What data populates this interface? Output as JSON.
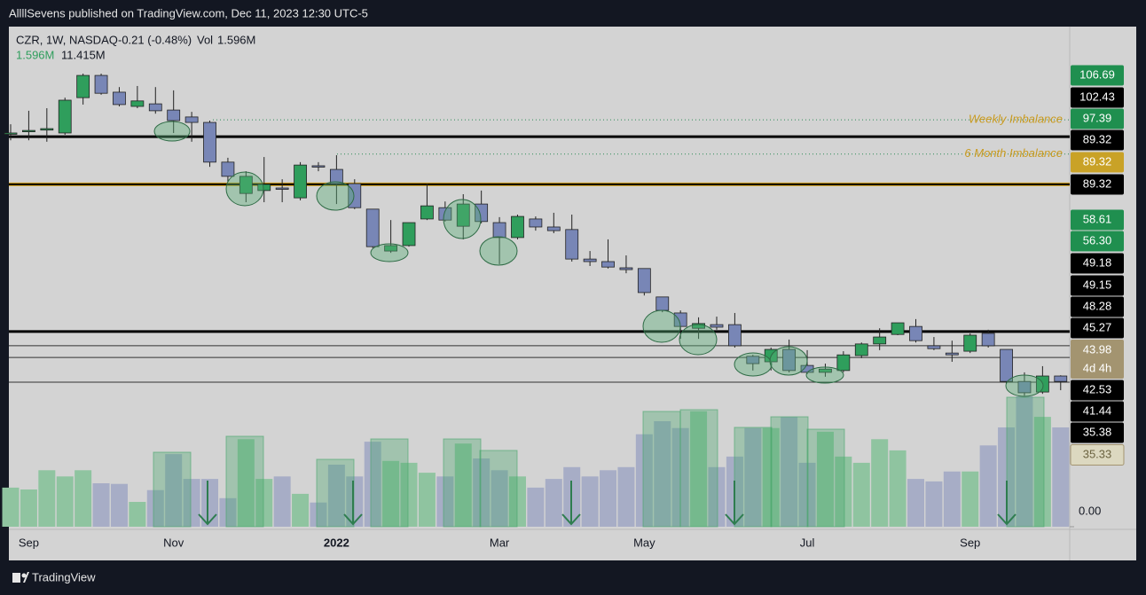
{
  "header": {
    "title": "AllllSevens published on TradingView.com, Dec 11, 2023 12:30 UTC-5"
  },
  "legend": {
    "symbol": "CZR, 1W, NASDAQ",
    "change": "-0.21 (-0.48%)",
    "vol_label": "Vol",
    "vol_value": "1.596M",
    "vol_line": [
      "1.596M",
      "11.415M"
    ]
  },
  "footer": {
    "brand": "TradingView"
  },
  "chart_data": {
    "type": "candlestick",
    "up_color": "#2f9e5c",
    "down_color": "#7886b6",
    "categories": [
      null,
      "Sep",
      null,
      null,
      null,
      null,
      null,
      null,
      null,
      "Nov",
      null,
      null,
      null,
      null,
      null,
      null,
      null,
      null,
      "2022",
      null,
      null,
      null,
      null,
      null,
      null,
      null,
      null,
      "Mar",
      null,
      null,
      null,
      null,
      null,
      null,
      null,
      "May",
      null,
      null,
      null,
      null,
      null,
      null,
      null,
      null,
      "Jul",
      null,
      null,
      null,
      null,
      null,
      null,
      null,
      null,
      "Sep",
      null,
      null,
      null,
      null,
      null
    ],
    "ylim": [
      -5,
      133
    ],
    "candles": {
      "open": [
        103.8,
        104.3,
        104.6,
        103.8,
        113.5,
        119.6,
        115.0,
        111.1,
        111.8,
        110.1,
        108.2,
        106.7,
        95.8,
        87.2,
        88.0,
        88.7,
        86.0,
        94.8,
        93.8,
        89.9,
        82.9,
        71.4,
        72.9,
        80.2,
        83.3,
        78.2,
        84.3,
        79.2,
        75.1,
        80.2,
        78.0,
        77.3,
        69.2,
        68.5,
        66.8,
        66.6,
        58.8,
        54.4,
        50.2,
        51.2,
        51.2,
        42.5,
        41.0,
        44.4,
        40.0,
        38.1,
        38.6,
        42.7,
        45.9,
        48.5,
        50.7,
        45.4,
        43.4,
        43.9,
        48.8,
        44.4,
        35.6,
        32.7,
        37.1
      ],
      "high": [
        106.2,
        109.9,
        110.6,
        113.5,
        120.1,
        120.1,
        116.4,
        116.7,
        116.4,
        115.5,
        109.6,
        107.2,
        97.0,
        93.3,
        97.2,
        91.1,
        95.8,
        95.8,
        97.7,
        91.1,
        82.9,
        79.9,
        79.2,
        89.9,
        85.0,
        87.0,
        88.0,
        80.7,
        81.4,
        80.9,
        81.9,
        81.4,
        71.4,
        74.6,
        70.2,
        66.6,
        58.8,
        55.1,
        53.2,
        53.4,
        54.4,
        42.9,
        44.9,
        47.1,
        44.2,
        40.5,
        43.9,
        46.3,
        50.2,
        51.7,
        52.7,
        47.8,
        46.8,
        48.8,
        49.8,
        44.4,
        38.1,
        39.8,
        37.3
      ],
      "low": [
        101.8,
        101.8,
        101.4,
        103.3,
        111.6,
        114.3,
        111.1,
        110.6,
        109.1,
        103.8,
        101.4,
        94.5,
        90.4,
        84.8,
        84.8,
        84.8,
        85.3,
        93.3,
        84.3,
        82.9,
        72.2,
        70.9,
        72.6,
        79.9,
        79.5,
        74.6,
        79.0,
        67.8,
        74.6,
        77.0,
        76.3,
        68.5,
        67.3,
        66.6,
        65.3,
        59.2,
        54.6,
        47.3,
        47.3,
        49.8,
        44.9,
        38.6,
        38.6,
        38.1,
        37.6,
        36.9,
        38.1,
        42.0,
        44.2,
        48.3,
        46.3,
        44.2,
        41.0,
        43.4,
        44.9,
        34.9,
        31.7,
        32.2,
        33.2
      ],
      "close": [
        103.8,
        104.5,
        105.0,
        112.8,
        119.6,
        114.7,
        111.6,
        112.6,
        109.9,
        107.2,
        106.7,
        95.8,
        91.9,
        91.9,
        89.7,
        88.6,
        95.0,
        94.7,
        89.9,
        83.3,
        72.6,
        72.9,
        79.2,
        83.8,
        79.9,
        84.3,
        79.5,
        75.1,
        80.9,
        78.0,
        77.0,
        69.2,
        68.5,
        67.0,
        66.3,
        60.0,
        55.1,
        50.7,
        51.5,
        50.5,
        45.4,
        40.5,
        44.4,
        38.6,
        38.1,
        39.0,
        42.9,
        45.9,
        47.8,
        51.7,
        46.8,
        44.6,
        42.9,
        48.3,
        45.4,
        35.6,
        32.5,
        37.1,
        35.6
      ]
    },
    "volume": {
      "values": [
        0.63,
        0.6,
        0.91,
        0.81,
        0.91,
        0.7,
        0.69,
        0.4,
        0.59,
        1.17,
        0.77,
        0.77,
        0.46,
        1.41,
        0.77,
        0.81,
        0.53,
        0.39,
        1.0,
        0.81,
        1.37,
        1.06,
        1.03,
        0.87,
        0.81,
        1.34,
        1.1,
        0.91,
        0.81,
        0.63,
        0.77,
        0.96,
        0.81,
        0.91,
        0.96,
        1.49,
        1.7,
        1.59,
        1.86,
        0.96,
        1.13,
        1.59,
        1.59,
        1.77,
        1.03,
        1.53,
        1.13,
        1.03,
        1.41,
        1.23,
        0.77,
        0.73,
        0.89,
        0.89,
        1.31,
        1.6,
        2.1,
        1.77,
        1.6
      ],
      "up_color": "#8fc4a0",
      "down_color": "#a7adc6",
      "ylim": [
        0,
        2.2
      ],
      "yticks": [
        {
          "value": 0,
          "label": "0.00"
        }
      ]
    },
    "levels": [
      {
        "value": 107.4,
        "color": "#2e8b57",
        "width": 1,
        "style": "dotted",
        "label": "Weekly Imbalance"
      },
      {
        "value": 102.8,
        "color": "#000000",
        "width": 3
      },
      {
        "value": 98.0,
        "color": "#2e8b57",
        "width": 1,
        "style": "dotted",
        "label": "6 Month Imbalance"
      },
      {
        "value": 89.7,
        "color": "#000000",
        "width": 2,
        "outline": "#d4a017"
      },
      {
        "value": 49.3,
        "color": "#000000",
        "width": 3
      },
      {
        "value": 45.4,
        "color": "#333333",
        "width": 1
      },
      {
        "value": 42.2,
        "color": "#333333",
        "width": 1
      },
      {
        "value": 35.4,
        "color": "#333333",
        "width": 1
      }
    ],
    "level_label_color": "#c99a1e",
    "price_labels": [
      {
        "value": 106.69,
        "color": "#1f8f4f"
      },
      {
        "value": 102.43,
        "color": "#000000"
      },
      {
        "value": 97.39,
        "color": "#1f8f4f"
      },
      {
        "value": 89.32,
        "color": "#000000"
      },
      {
        "value": 89.32,
        "color": "#c9a227"
      },
      {
        "value": 89.32,
        "color": "#000000"
      },
      {
        "value": 58.61,
        "color": "#1f8f4f"
      },
      {
        "value": 56.3,
        "label": "56.30",
        "color": "#1f8f4f"
      },
      {
        "value": 49.18,
        "color": "#000000"
      },
      {
        "value": 49.15,
        "color": "#000000"
      },
      {
        "value": 48.28,
        "color": "#000000"
      },
      {
        "value": 45.27,
        "color": "#000000"
      },
      {
        "value": 43.98,
        "countdown": "4d 4h",
        "color": "#a39470"
      },
      {
        "value": 42.53,
        "color": "#000000"
      },
      {
        "value": 41.44,
        "color": "#000000"
      },
      {
        "value": 35.38,
        "color": "#000000"
      },
      {
        "value": 35.33,
        "color": "#dcd8c0"
      }
    ]
  }
}
